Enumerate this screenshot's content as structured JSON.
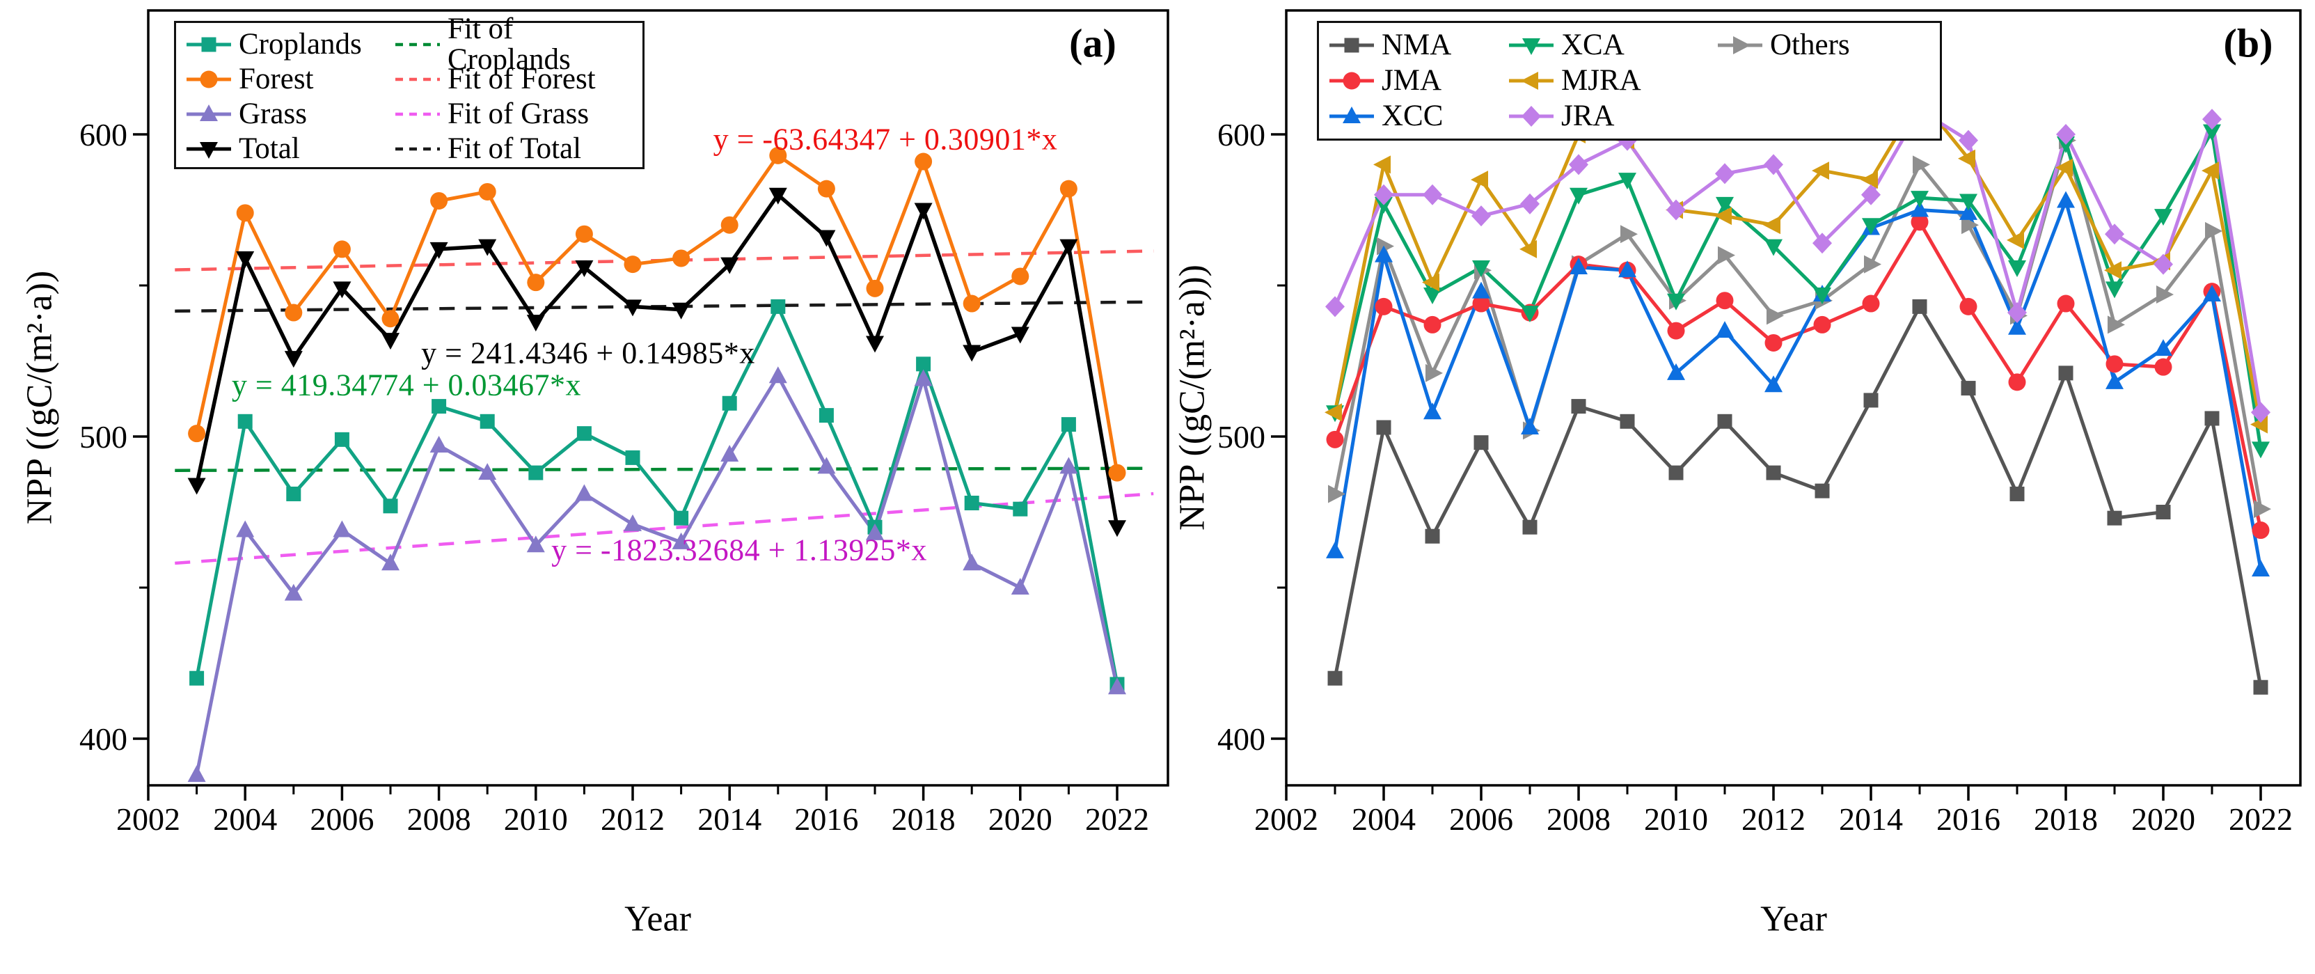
{
  "figure": {
    "background": "#ffffff",
    "panel_a_corner": "(a)",
    "panel_b_corner": "(b)"
  },
  "chart_data": [
    {
      "id": "a",
      "type": "line",
      "corner_label": "(a)",
      "xlabel": "Year",
      "ylabel": "NPP ((gC/(m²·a))",
      "x_ticks": [
        2002,
        2004,
        2006,
        2008,
        2010,
        2012,
        2014,
        2016,
        2018,
        2020,
        2022
      ],
      "x_minor_ticks": [
        2003,
        2005,
        2007,
        2009,
        2011,
        2013,
        2015,
        2017,
        2019,
        2021
      ],
      "y_ticks": [
        400,
        500,
        600
      ],
      "y_minor_ticks": [
        450,
        550
      ],
      "x_range": [
        2002,
        2023
      ],
      "y_range": [
        384,
        641
      ],
      "grid": false,
      "legend_position": "top-left",
      "years": [
        2003,
        2004,
        2005,
        2006,
        2007,
        2008,
        2009,
        2010,
        2011,
        2012,
        2013,
        2014,
        2015,
        2016,
        2017,
        2018,
        2019,
        2020,
        2021,
        2022
      ],
      "series": [
        {
          "name": "Croplands",
          "color": "#11a384",
          "marker": "square",
          "values": [
            420,
            505,
            481,
            499,
            477,
            510,
            505,
            488,
            501,
            493,
            473,
            511,
            543,
            507,
            470,
            524,
            478,
            476,
            504,
            418
          ]
        },
        {
          "name": "Forest",
          "color": "#f8790f",
          "marker": "circle",
          "values": [
            501,
            574,
            541,
            562,
            539,
            578,
            581,
            551,
            567,
            557,
            559,
            570,
            593,
            582,
            549,
            591,
            544,
            553,
            582,
            488
          ]
        },
        {
          "name": "Grass",
          "color": "#8478c8",
          "marker": "triangle-up",
          "values": [
            388,
            469,
            448,
            469,
            458,
            497,
            488,
            464,
            481,
            471,
            465,
            494,
            520,
            490,
            468,
            519,
            458,
            450,
            490,
            417
          ]
        },
        {
          "name": "Total",
          "color": "#000000",
          "marker": "triangle-down",
          "values": [
            484,
            559,
            526,
            549,
            532,
            562,
            563,
            538,
            556,
            543,
            542,
            557,
            580,
            566,
            531,
            575,
            528,
            534,
            563,
            470
          ]
        }
      ],
      "fits": [
        {
          "name": "Fit of Croplands",
          "color": "#008a33",
          "intercept": 419.34774,
          "slope": 0.03467
        },
        {
          "name": "Fit of Forest",
          "color": "#fb5a5e",
          "intercept": -63.64347,
          "slope": 0.30901
        },
        {
          "name": "Fit of Grass",
          "color": "#ef5cf0",
          "intercept": -1823.32684,
          "slope": 1.13925
        },
        {
          "name": "Fit of Total",
          "color": "#1a1a1a",
          "intercept": 241.4346,
          "slope": 0.14985
        }
      ],
      "annotations": [
        {
          "text": "y = -63.64347 + 0.30901*x",
          "color": "#ee1111"
        },
        {
          "text": "y = 241.4346 + 0.14985*x",
          "color": "#000000"
        },
        {
          "text": "y = 419.34774 + 0.03467*x",
          "color": "#009733"
        },
        {
          "text": "y = -1823.32684 + 1.13925*x",
          "color": "#c317c3"
        }
      ]
    },
    {
      "id": "b",
      "type": "line",
      "corner_label": "(b)",
      "xlabel": "Year",
      "ylabel": "NPP ((gC/(m²·a)))",
      "x_ticks": [
        2002,
        2004,
        2006,
        2008,
        2010,
        2012,
        2014,
        2016,
        2018,
        2020,
        2022
      ],
      "x_minor_ticks": [
        2003,
        2005,
        2007,
        2009,
        2011,
        2013,
        2015,
        2017,
        2019,
        2021
      ],
      "y_ticks": [
        400,
        500,
        600
      ],
      "y_minor_ticks": [
        450,
        550
      ],
      "x_range": [
        2002,
        2023
      ],
      "y_range": [
        384,
        641
      ],
      "grid": false,
      "legend_position": "top-left",
      "years": [
        2003,
        2004,
        2005,
        2006,
        2007,
        2008,
        2009,
        2010,
        2011,
        2012,
        2013,
        2014,
        2015,
        2016,
        2017,
        2018,
        2019,
        2020,
        2021,
        2022
      ],
      "series": [
        {
          "name": "NMA",
          "color": "#555555",
          "marker": "square",
          "values": [
            420,
            503,
            467,
            498,
            470,
            510,
            505,
            488,
            505,
            488,
            482,
            512,
            543,
            516,
            481,
            521,
            473,
            475,
            506,
            417
          ]
        },
        {
          "name": "JMA",
          "color": "#f4333c",
          "marker": "circle",
          "values": [
            499,
            543,
            537,
            544,
            541,
            557,
            555,
            535,
            545,
            531,
            537,
            544,
            571,
            543,
            518,
            544,
            524,
            523,
            548,
            469
          ]
        },
        {
          "name": "XCC",
          "color": "#0d6fe0",
          "marker": "triangle-up",
          "values": [
            462,
            560,
            508,
            548,
            503,
            556,
            555,
            521,
            535,
            517,
            547,
            569,
            575,
            574,
            536,
            578,
            518,
            529,
            547,
            456
          ]
        },
        {
          "name": "XCA",
          "color": "#0ba76b",
          "marker": "triangle-down",
          "values": [
            508,
            577,
            547,
            556,
            541,
            580,
            585,
            545,
            577,
            563,
            547,
            570,
            579,
            578,
            556,
            597,
            549,
            573,
            601,
            496
          ]
        },
        {
          "name": "MJRA",
          "color": "#d49b12",
          "marker": "triangle-left",
          "values": [
            508,
            590,
            551,
            585,
            562,
            600,
            598,
            575,
            573,
            570,
            588,
            585,
            612,
            592,
            565,
            589,
            555,
            558,
            588,
            504
          ]
        },
        {
          "name": "JRA",
          "color": "#c07ee8",
          "marker": "diamond",
          "values": [
            543,
            580,
            580,
            573,
            577,
            590,
            598,
            575,
            587,
            590,
            564,
            580,
            608,
            598,
            541,
            600,
            567,
            557,
            605,
            508
          ]
        },
        {
          "name": "Others",
          "color": "#8f8f8f",
          "marker": "triangle-right",
          "values": [
            481,
            563,
            521,
            555,
            502,
            557,
            567,
            545,
            560,
            540,
            545,
            557,
            590,
            570,
            540,
            598,
            537,
            547,
            568,
            476
          ]
        }
      ],
      "fits": [],
      "annotations": []
    }
  ]
}
